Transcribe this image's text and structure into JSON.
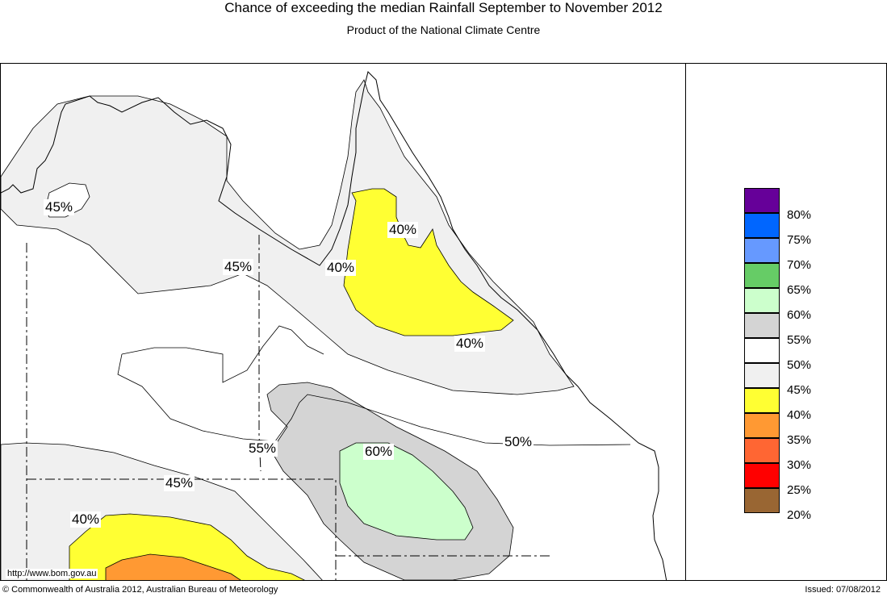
{
  "title": "Chance of exceeding the median Rainfall September to November 2012",
  "subtitle": "Product of the National Climate Centre",
  "footer": {
    "url": "http://www.bom.gov.au",
    "copyright": "© Commonwealth of Australia 2012, Australian Bureau of Meteorology",
    "issued": "Issued: 07/08/2012"
  },
  "legend": [
    {
      "label": "80%",
      "color": "#660099"
    },
    {
      "label": "75%",
      "color": "#0066ff"
    },
    {
      "label": "70%",
      "color": "#6699ff"
    },
    {
      "label": "65%",
      "color": "#66cc66"
    },
    {
      "label": "60%",
      "color": "#ccffcc"
    },
    {
      "label": "55%",
      "color": "#d4d4d4"
    },
    {
      "label": "50%",
      "color": "#ffffff"
    },
    {
      "label": "45%",
      "color": "#f0f0f0"
    },
    {
      "label": "40%",
      "color": "#ffff33"
    },
    {
      "label": "35%",
      "color": "#ff9933"
    },
    {
      "label": "30%",
      "color": "#ff6633"
    },
    {
      "label": "25%",
      "color": "#ff0000"
    },
    {
      "label": "20%",
      "color": "#996633"
    }
  ],
  "contour_labels": {
    "l45_nw": "45%",
    "l45_mid": "45%",
    "l40_capeyork": "40%",
    "l40_west": "40%",
    "l40_coast": "40%",
    "l50": "50%",
    "l55": "55%",
    "l60": "60%",
    "l45_south": "45%",
    "l40_south": "40%"
  }
}
